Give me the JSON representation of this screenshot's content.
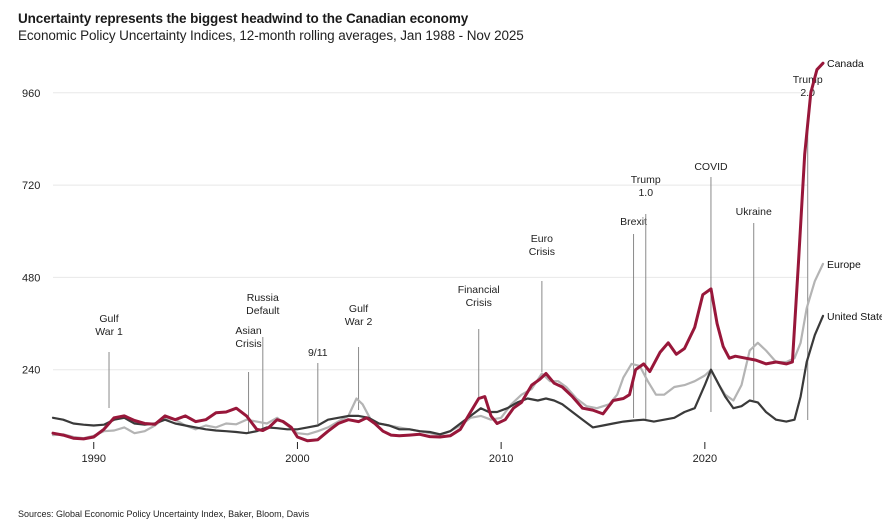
{
  "header": {
    "title": "Uncertainty represents the biggest headwind to the Canadian economy",
    "subtitle": "Economic Policy Uncertainty Indices, 12-month rolling averages, Jan 1988 - Nov 2025"
  },
  "footer": {
    "source": "Sources: Global Economic Policy Uncertainty Index, Baker, Bloom, Davis"
  },
  "chart_data": {
    "type": "line",
    "title": "Uncertainty represents the biggest headwind to the Canadian economy",
    "subtitle": "Economic Policy Uncertainty Indices, 12-month rolling averages, Jan 1988 - Nov 2025",
    "xlabel": "",
    "ylabel": "",
    "xlim": [
      1988.0,
      2025.9
    ],
    "ylim": [
      0,
      1040
    ],
    "x_ticks": [
      1990,
      2000,
      2010,
      2020
    ],
    "x_tick_labels": [
      "1990",
      "2000",
      "2010",
      "2020"
    ],
    "y_ticks": [
      240,
      480,
      720,
      960
    ],
    "y_tick_labels": [
      "240",
      "480",
      "720",
      "960"
    ],
    "grid": "horizontal",
    "legend": "direct labels at right end of lines",
    "colors": {
      "Canada": "#98173a",
      "Europe": "#b4b4b4",
      "United States": "#3a3a3a",
      "annotation": "#8a8a8a",
      "grid": "#e8e8e8"
    },
    "series": [
      {
        "name": "Canada",
        "points": [
          [
            1988.0,
            75
          ],
          [
            1988.5,
            70
          ],
          [
            1989.0,
            62
          ],
          [
            1989.5,
            60
          ],
          [
            1990.0,
            65
          ],
          [
            1990.5,
            85
          ],
          [
            1991.0,
            115
          ],
          [
            1991.5,
            120
          ],
          [
            1992.0,
            108
          ],
          [
            1992.5,
            100
          ],
          [
            1993.0,
            98
          ],
          [
            1993.5,
            120
          ],
          [
            1994.0,
            110
          ],
          [
            1994.5,
            120
          ],
          [
            1995.0,
            105
          ],
          [
            1995.5,
            110
          ],
          [
            1996.0,
            128
          ],
          [
            1996.5,
            130
          ],
          [
            1997.0,
            140
          ],
          [
            1997.5,
            120
          ],
          [
            1998.0,
            85
          ],
          [
            1998.3,
            82
          ],
          [
            1998.6,
            90
          ],
          [
            1999.0,
            110
          ],
          [
            1999.3,
            105
          ],
          [
            1999.7,
            90
          ],
          [
            2000.0,
            65
          ],
          [
            2000.5,
            55
          ],
          [
            2001.0,
            58
          ],
          [
            2001.5,
            80
          ],
          [
            2002.0,
            100
          ],
          [
            2002.5,
            110
          ],
          [
            2003.0,
            105
          ],
          [
            2003.4,
            115
          ],
          [
            2003.8,
            100
          ],
          [
            2004.2,
            80
          ],
          [
            2004.6,
            70
          ],
          [
            2005.0,
            68
          ],
          [
            2005.5,
            70
          ],
          [
            2006.0,
            72
          ],
          [
            2006.5,
            66
          ],
          [
            2007.0,
            65
          ],
          [
            2007.5,
            68
          ],
          [
            2008.0,
            85
          ],
          [
            2008.5,
            130
          ],
          [
            2008.9,
            165
          ],
          [
            2009.2,
            170
          ],
          [
            2009.5,
            120
          ],
          [
            2009.8,
            100
          ],
          [
            2010.2,
            110
          ],
          [
            2010.6,
            140
          ],
          [
            2011.0,
            155
          ],
          [
            2011.5,
            200
          ],
          [
            2011.9,
            215
          ],
          [
            2012.2,
            230
          ],
          [
            2012.6,
            205
          ],
          [
            2013.0,
            195
          ],
          [
            2013.5,
            170
          ],
          [
            2014.0,
            140
          ],
          [
            2014.5,
            135
          ],
          [
            2015.0,
            125
          ],
          [
            2015.5,
            160
          ],
          [
            2016.0,
            165
          ],
          [
            2016.3,
            175
          ],
          [
            2016.6,
            240
          ],
          [
            2017.0,
            255
          ],
          [
            2017.3,
            235
          ],
          [
            2017.8,
            285
          ],
          [
            2018.2,
            310
          ],
          [
            2018.6,
            280
          ],
          [
            2019.0,
            295
          ],
          [
            2019.5,
            350
          ],
          [
            2019.9,
            435
          ],
          [
            2020.3,
            450
          ],
          [
            2020.6,
            360
          ],
          [
            2020.9,
            300
          ],
          [
            2021.2,
            270
          ],
          [
            2021.5,
            275
          ],
          [
            2022.0,
            270
          ],
          [
            2022.5,
            265
          ],
          [
            2023.0,
            255
          ],
          [
            2023.5,
            260
          ],
          [
            2024.0,
            255
          ],
          [
            2024.3,
            260
          ],
          [
            2024.6,
            520
          ],
          [
            2024.9,
            800
          ],
          [
            2025.2,
            960
          ],
          [
            2025.5,
            1020
          ],
          [
            2025.8,
            1037
          ]
        ]
      },
      {
        "name": "Europe",
        "points": [
          [
            1988.0,
            70
          ],
          [
            1988.5,
            72
          ],
          [
            1989.0,
            65
          ],
          [
            1989.5,
            62
          ],
          [
            1990.0,
            68
          ],
          [
            1990.5,
            80
          ],
          [
            1991.0,
            82
          ],
          [
            1991.5,
            90
          ],
          [
            1992.0,
            75
          ],
          [
            1992.5,
            80
          ],
          [
            1993.0,
            95
          ],
          [
            1993.5,
            115
          ],
          [
            1994.0,
            110
          ],
          [
            1994.5,
            95
          ],
          [
            1995.0,
            85
          ],
          [
            1995.5,
            95
          ],
          [
            1996.0,
            90
          ],
          [
            1996.5,
            100
          ],
          [
            1997.0,
            98
          ],
          [
            1997.5,
            110
          ],
          [
            1998.0,
            105
          ],
          [
            1998.5,
            100
          ],
          [
            1999.0,
            115
          ],
          [
            1999.5,
            95
          ],
          [
            2000.0,
            75
          ],
          [
            2000.5,
            72
          ],
          [
            2001.0,
            80
          ],
          [
            2001.5,
            90
          ],
          [
            2002.0,
            105
          ],
          [
            2002.5,
            120
          ],
          [
            2002.9,
            165
          ],
          [
            2003.2,
            150
          ],
          [
            2003.6,
            110
          ],
          [
            2004.0,
            100
          ],
          [
            2004.5,
            95
          ],
          [
            2005.0,
            90
          ],
          [
            2005.5,
            85
          ],
          [
            2006.0,
            80
          ],
          [
            2006.5,
            75
          ],
          [
            2007.0,
            70
          ],
          [
            2007.5,
            80
          ],
          [
            2008.0,
            95
          ],
          [
            2008.5,
            115
          ],
          [
            2009.0,
            120
          ],
          [
            2009.5,
            110
          ],
          [
            2010.0,
            115
          ],
          [
            2010.5,
            150
          ],
          [
            2011.0,
            175
          ],
          [
            2011.5,
            190
          ],
          [
            2012.0,
            230
          ],
          [
            2012.4,
            210
          ],
          [
            2012.8,
            210
          ],
          [
            2013.2,
            195
          ],
          [
            2013.7,
            165
          ],
          [
            2014.2,
            145
          ],
          [
            2014.7,
            140
          ],
          [
            2015.3,
            150
          ],
          [
            2015.7,
            175
          ],
          [
            2016.0,
            220
          ],
          [
            2016.4,
            255
          ],
          [
            2016.8,
            250
          ],
          [
            2017.2,
            210
          ],
          [
            2017.6,
            175
          ],
          [
            2018.0,
            175
          ],
          [
            2018.5,
            195
          ],
          [
            2019.0,
            200
          ],
          [
            2019.5,
            210
          ],
          [
            2020.0,
            225
          ],
          [
            2020.3,
            240
          ],
          [
            2020.7,
            200
          ],
          [
            2021.0,
            175
          ],
          [
            2021.4,
            160
          ],
          [
            2021.8,
            200
          ],
          [
            2022.2,
            290
          ],
          [
            2022.6,
            310
          ],
          [
            2023.0,
            290
          ],
          [
            2023.5,
            260
          ],
          [
            2024.0,
            260
          ],
          [
            2024.4,
            270
          ],
          [
            2024.7,
            310
          ],
          [
            2025.0,
            400
          ],
          [
            2025.4,
            470
          ],
          [
            2025.8,
            515
          ]
        ]
      },
      {
        "name": "United States",
        "points": [
          [
            1988.0,
            115
          ],
          [
            1988.5,
            110
          ],
          [
            1989.0,
            100
          ],
          [
            1989.5,
            97
          ],
          [
            1990.0,
            95
          ],
          [
            1990.5,
            97
          ],
          [
            1991.0,
            110
          ],
          [
            1991.5,
            115
          ],
          [
            1992.0,
            100
          ],
          [
            1992.5,
            97
          ],
          [
            1993.0,
            100
          ],
          [
            1993.5,
            110
          ],
          [
            1994.0,
            100
          ],
          [
            1994.5,
            95
          ],
          [
            1995.0,
            90
          ],
          [
            1995.5,
            85
          ],
          [
            1996.0,
            82
          ],
          [
            1996.5,
            80
          ],
          [
            1997.0,
            78
          ],
          [
            1997.5,
            75
          ],
          [
            1998.0,
            80
          ],
          [
            1998.5,
            90
          ],
          [
            1999.0,
            88
          ],
          [
            1999.5,
            85
          ],
          [
            2000.0,
            85
          ],
          [
            2000.5,
            90
          ],
          [
            2001.0,
            95
          ],
          [
            2001.5,
            110
          ],
          [
            2002.0,
            115
          ],
          [
            2002.5,
            120
          ],
          [
            2003.0,
            120
          ],
          [
            2003.5,
            115
          ],
          [
            2004.0,
            100
          ],
          [
            2004.5,
            95
          ],
          [
            2005.0,
            85
          ],
          [
            2005.5,
            85
          ],
          [
            2006.0,
            80
          ],
          [
            2006.5,
            78
          ],
          [
            2007.0,
            72
          ],
          [
            2007.5,
            80
          ],
          [
            2008.0,
            100
          ],
          [
            2008.5,
            120
          ],
          [
            2009.0,
            140
          ],
          [
            2009.4,
            130
          ],
          [
            2009.8,
            130
          ],
          [
            2010.3,
            140
          ],
          [
            2010.8,
            155
          ],
          [
            2011.3,
            165
          ],
          [
            2011.8,
            160
          ],
          [
            2012.2,
            165
          ],
          [
            2012.6,
            160
          ],
          [
            2013.0,
            150
          ],
          [
            2013.5,
            130
          ],
          [
            2014.0,
            110
          ],
          [
            2014.5,
            90
          ],
          [
            2015.0,
            95
          ],
          [
            2015.5,
            100
          ],
          [
            2016.0,
            105
          ],
          [
            2016.5,
            108
          ],
          [
            2017.0,
            110
          ],
          [
            2017.5,
            105
          ],
          [
            2018.0,
            110
          ],
          [
            2018.5,
            115
          ],
          [
            2019.0,
            130
          ],
          [
            2019.5,
            140
          ],
          [
            2020.0,
            200
          ],
          [
            2020.3,
            240
          ],
          [
            2020.7,
            200
          ],
          [
            2021.0,
            170
          ],
          [
            2021.4,
            140
          ],
          [
            2021.8,
            145
          ],
          [
            2022.2,
            160
          ],
          [
            2022.6,
            155
          ],
          [
            2023.0,
            130
          ],
          [
            2023.5,
            110
          ],
          [
            2024.0,
            105
          ],
          [
            2024.4,
            110
          ],
          [
            2024.7,
            170
          ],
          [
            2025.0,
            260
          ],
          [
            2025.4,
            330
          ],
          [
            2025.8,
            380
          ]
        ]
      }
    ],
    "annotations": [
      {
        "label": [
          "Gulf",
          "War 1"
        ],
        "x": 1990.75
      },
      {
        "label": [
          "Asian",
          "Crisis"
        ],
        "x": 1997.6
      },
      {
        "label": [
          "Russia",
          "Default"
        ],
        "x": 1998.3
      },
      {
        "label": [
          "9/11"
        ],
        "x": 2001.0
      },
      {
        "label": [
          "Gulf",
          "War 2"
        ],
        "x": 2003.0
      },
      {
        "label": [
          "Financial",
          "Crisis"
        ],
        "x": 2008.9
      },
      {
        "label": [
          "Euro",
          "Crisis"
        ],
        "x": 2012.0
      },
      {
        "label": [
          "Brexit"
        ],
        "x": 2016.5
      },
      {
        "label": [
          "Trump",
          "1.0"
        ],
        "x": 2017.1
      },
      {
        "label": [
          "COVID"
        ],
        "x": 2020.3
      },
      {
        "label": [
          "Ukraine"
        ],
        "x": 2022.4
      },
      {
        "label": [
          "Trump",
          "2.0"
        ],
        "x": 2025.05
      }
    ]
  }
}
